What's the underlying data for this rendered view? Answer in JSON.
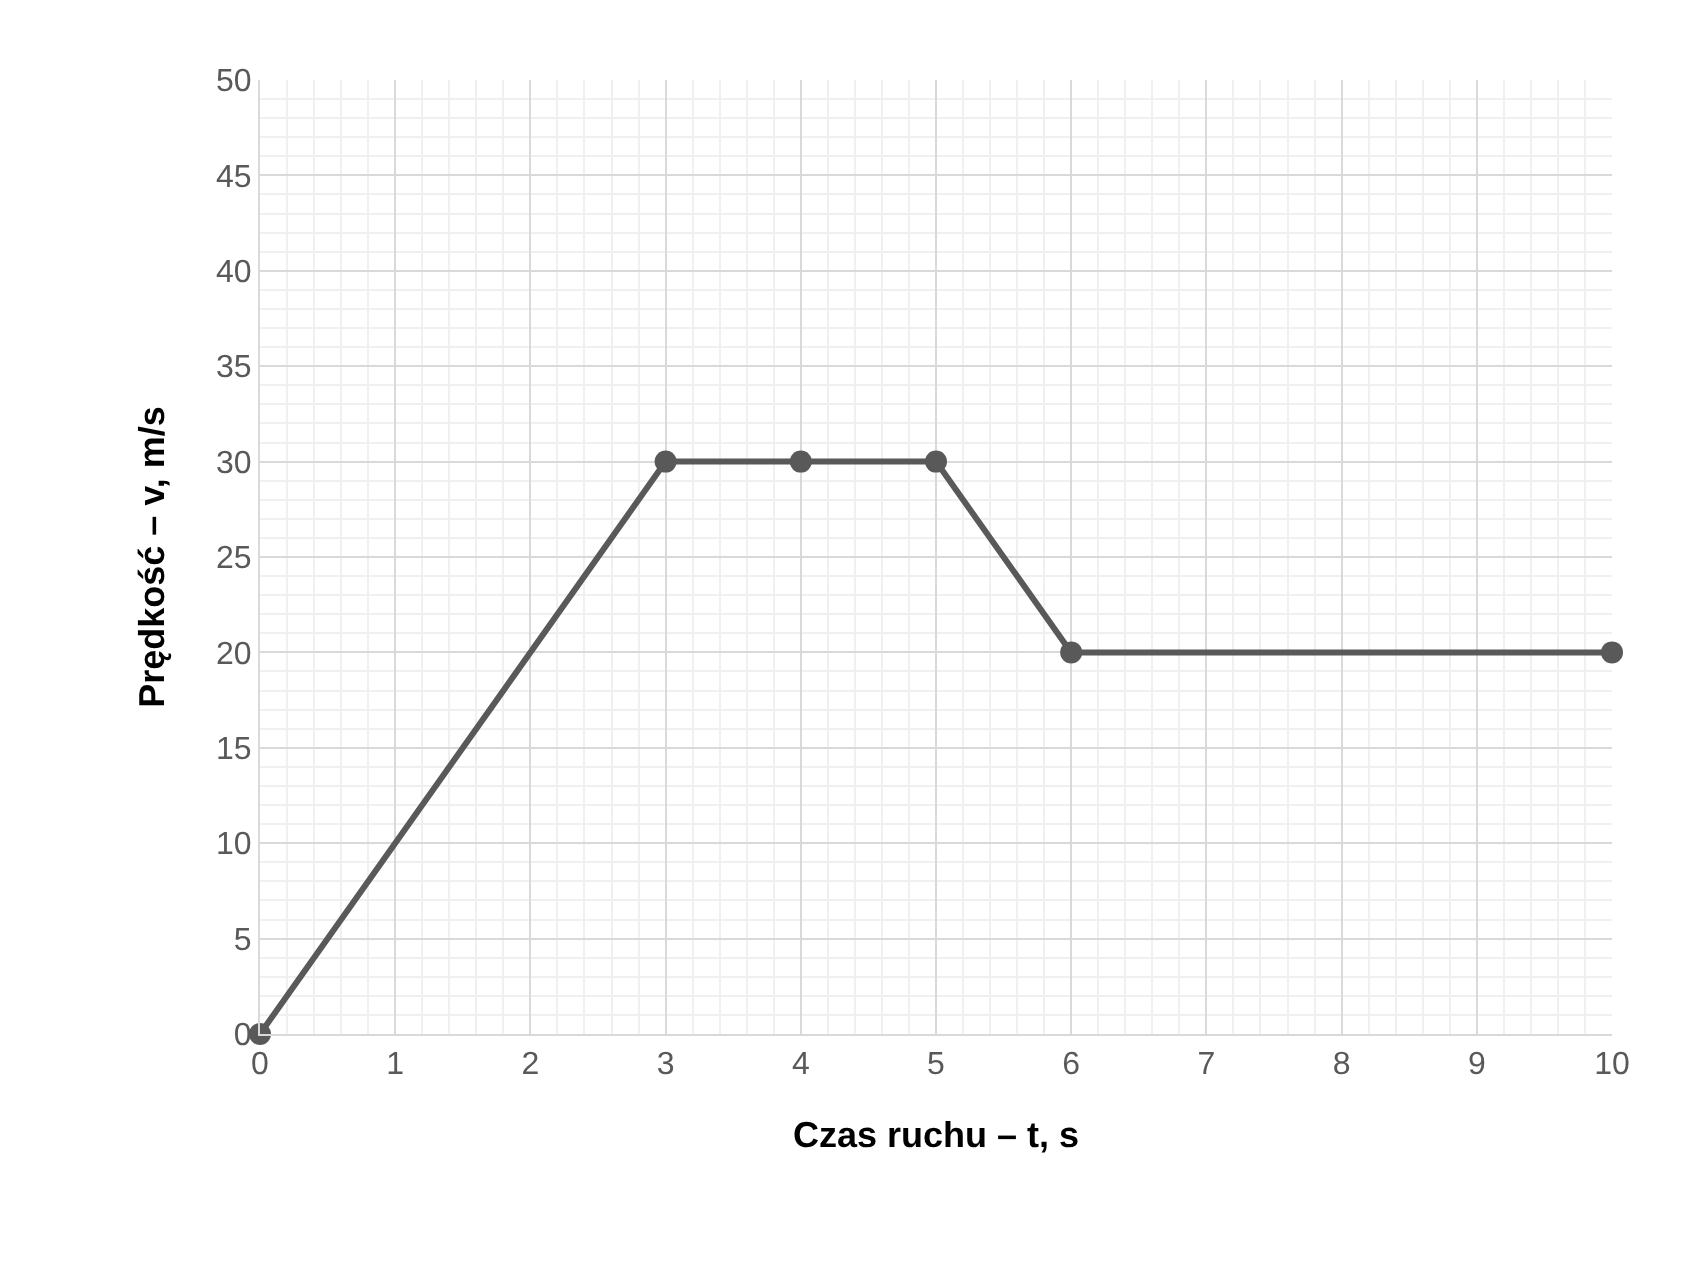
{
  "chart_data": {
    "type": "line",
    "xlabel": "Czas ruchu – t, s",
    "ylabel": "Prędkość – v, m/s",
    "x": [
      0,
      3,
      4,
      5,
      6,
      10
    ],
    "series": [
      {
        "color": "#595959",
        "values": [
          0,
          30,
          30,
          30,
          20,
          20
        ]
      }
    ],
    "xlim": [
      0,
      10
    ],
    "xticks": [
      0,
      1,
      2,
      3,
      4,
      5,
      6,
      7,
      8,
      9,
      10
    ],
    "ylim": [
      0,
      50
    ],
    "yticks": [
      0,
      5,
      10,
      15,
      20,
      25,
      30,
      35,
      40,
      45,
      50
    ],
    "grid": true,
    "marker": "circle",
    "line_style": "solid"
  }
}
